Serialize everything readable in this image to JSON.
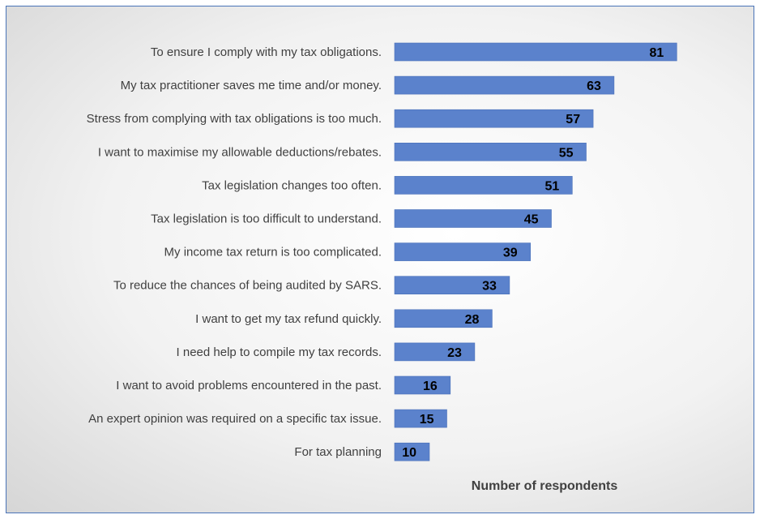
{
  "chart_data": {
    "type": "bar",
    "orientation": "horizontal",
    "categories": [
      "To ensure I comply with my tax obligations.",
      "My tax practitioner saves me time and/or money.",
      "Stress from complying with tax obligations is too much.",
      "I want to maximise my allowable deductions/rebates.",
      "Tax legislation changes too often.",
      "Tax legislation is too difficult to understand.",
      "My income tax return is too complicated.",
      "To reduce the chances of being audited by SARS.",
      "I want to get my tax refund quickly.",
      "I need help to compile my tax records.",
      "I want to avoid problems encountered in the past.",
      "An expert opinion was required on a specific tax issue.",
      "For tax planning"
    ],
    "values": [
      81,
      63,
      57,
      55,
      51,
      45,
      39,
      33,
      28,
      23,
      16,
      15,
      10
    ],
    "title": "",
    "xlabel": "Number of respondents",
    "ylabel": "",
    "xlim": [
      0,
      81
    ],
    "grid": false,
    "legend": "none",
    "data_labels": "inside-end",
    "colors": {
      "bar": "#5b82cc",
      "bar_stroke": "#4a70b8",
      "frame_border": "#4a74b8",
      "category_text": "#404040",
      "value_text": "#000000"
    }
  }
}
